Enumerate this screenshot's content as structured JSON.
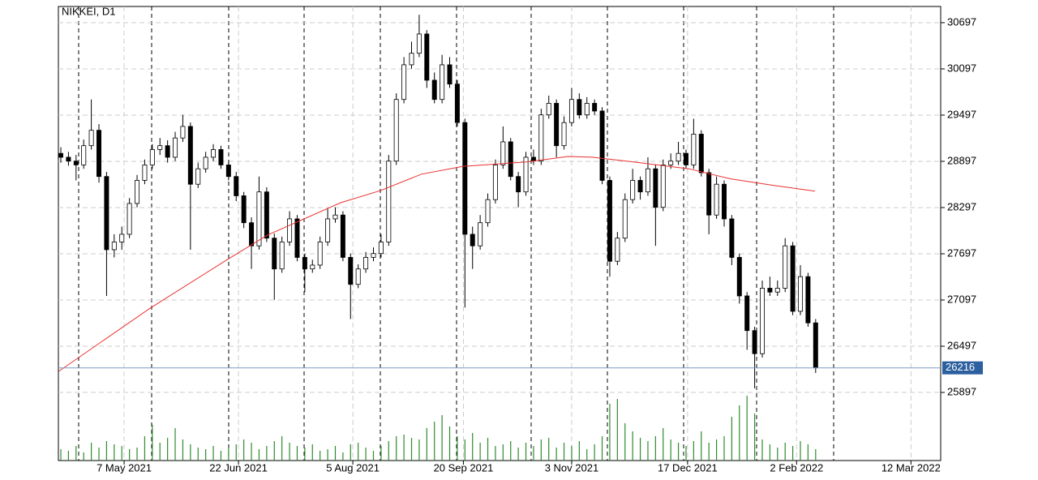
{
  "chart_data": {
    "type": "candlestick",
    "title": "NIKKEI, D1",
    "ylim": [
      25013,
      30907
    ],
    "yticks": [
      25897,
      26497,
      27097,
      27697,
      28297,
      28897,
      29497,
      30097,
      30697
    ],
    "xlim": [
      -0.32,
      115.4
    ],
    "xticks": [
      {
        "value": 8.3,
        "label": "7 May 2021"
      },
      {
        "value": 23.3,
        "label": "22 Jun 2021"
      },
      {
        "value": 38.3,
        "label": "5 Aug 2021"
      },
      {
        "value": 52.8,
        "label": "20 Sep 2021"
      },
      {
        "value": 67,
        "label": "3 Nov 2021"
      },
      {
        "value": 82.2,
        "label": "17 Dec 2021"
      },
      {
        "value": 96.5,
        "label": "2 Feb 2022"
      },
      {
        "value": 111.5,
        "label": "12 Mar 2022"
      }
    ],
    "grid": true,
    "up_color": "#ffffff",
    "down_color": "#000000",
    "ohlc": [
      [
        29000,
        29080,
        28880,
        28950
      ],
      [
        28950,
        29020,
        28840,
        28900
      ],
      [
        28900,
        28980,
        28650,
        28850
      ],
      [
        28850,
        29180,
        28800,
        29100
      ],
      [
        29100,
        29700,
        29050,
        29300
      ],
      [
        29300,
        29380,
        28620,
        28700
      ],
      [
        28700,
        28760,
        27150,
        27750
      ],
      [
        27750,
        27950,
        27650,
        27850
      ],
      [
        27850,
        28050,
        27750,
        27950
      ],
      [
        27950,
        28420,
        27900,
        28350
      ],
      [
        28350,
        28720,
        28300,
        28650
      ],
      [
        28650,
        28920,
        28600,
        28850
      ],
      [
        28850,
        29120,
        28800,
        29050
      ],
      [
        29050,
        29200,
        28980,
        29100
      ],
      [
        29100,
        29170,
        28880,
        28950
      ],
      [
        28950,
        29280,
        28900,
        29200
      ],
      [
        29200,
        29500,
        29150,
        29350
      ],
      [
        29350,
        29400,
        27750,
        28600
      ],
      [
        28600,
        28880,
        28550,
        28800
      ],
      [
        28800,
        29020,
        28750,
        28950
      ],
      [
        28950,
        29120,
        28900,
        29050
      ],
      [
        29050,
        29100,
        28800,
        28850
      ],
      [
        28850,
        28900,
        28650,
        28700
      ],
      [
        28700,
        28760,
        28380,
        28450
      ],
      [
        28450,
        28500,
        28030,
        28100
      ],
      [
        28100,
        28170,
        27500,
        27800
      ],
      [
        27800,
        28700,
        27750,
        28500
      ],
      [
        28500,
        28560,
        27850,
        27900
      ],
      [
        27900,
        27960,
        27100,
        27500
      ],
      [
        27500,
        27920,
        27450,
        27850
      ],
      [
        27850,
        28250,
        27800,
        28150
      ],
      [
        28150,
        28200,
        27600,
        27650
      ],
      [
        27650,
        27700,
        27200,
        27500
      ],
      [
        27500,
        27620,
        27450,
        27550
      ],
      [
        27550,
        27920,
        27500,
        27850
      ],
      [
        27850,
        28280,
        27800,
        28150
      ],
      [
        28150,
        28300,
        28100,
        28200
      ],
      [
        28200,
        28250,
        27600,
        27650
      ],
      [
        27650,
        27700,
        26850,
        27300
      ],
      [
        27300,
        27560,
        27250,
        27500
      ],
      [
        27500,
        27720,
        27450,
        27650
      ],
      [
        27650,
        27780,
        27600,
        27700
      ],
      [
        27700,
        27950,
        27650,
        27850
      ],
      [
        27850,
        28980,
        27800,
        28900
      ],
      [
        28900,
        29780,
        28850,
        29700
      ],
      [
        29700,
        30250,
        29650,
        30150
      ],
      [
        30150,
        30450,
        30100,
        30300
      ],
      [
        30300,
        30800,
        30250,
        30550
      ],
      [
        30550,
        30600,
        29850,
        29950
      ],
      [
        29950,
        30050,
        29650,
        29700
      ],
      [
        29700,
        30280,
        29650,
        30150
      ],
      [
        30150,
        30250,
        29850,
        29900
      ],
      [
        29900,
        29950,
        29350,
        29400
      ],
      [
        29400,
        29450,
        27000,
        27950
      ],
      [
        27950,
        28050,
        27500,
        27800
      ],
      [
        27800,
        28200,
        27750,
        28100
      ],
      [
        28100,
        28480,
        28050,
        28400
      ],
      [
        28400,
        28920,
        28350,
        28850
      ],
      [
        28850,
        29350,
        28800,
        29150
      ],
      [
        29150,
        29200,
        28650,
        28700
      ],
      [
        28700,
        28760,
        28300,
        28500
      ],
      [
        28500,
        29020,
        28450,
        28950
      ],
      [
        28950,
        29050,
        28850,
        28900
      ],
      [
        28900,
        29580,
        28850,
        29500
      ],
      [
        29500,
        29750,
        29450,
        29650
      ],
      [
        29650,
        29700,
        28950,
        29100
      ],
      [
        29100,
        29480,
        29050,
        29400
      ],
      [
        29400,
        29850,
        29350,
        29700
      ],
      [
        29700,
        29780,
        29450,
        29500
      ],
      [
        29500,
        29730,
        29450,
        29650
      ],
      [
        29650,
        29700,
        29500,
        29550
      ],
      [
        29550,
        29600,
        28600,
        28650
      ],
      [
        28650,
        28700,
        27400,
        27600
      ],
      [
        27600,
        27980,
        27550,
        27900
      ],
      [
        27900,
        28480,
        27850,
        28400
      ],
      [
        28400,
        28800,
        28350,
        28650
      ],
      [
        28650,
        28700,
        28400,
        28500
      ],
      [
        28500,
        28950,
        28450,
        28800
      ],
      [
        28800,
        28850,
        27800,
        28300
      ],
      [
        28300,
        28920,
        28250,
        28850
      ],
      [
        28850,
        29000,
        28800,
        28900
      ],
      [
        28900,
        29150,
        28850,
        29000
      ],
      [
        29000,
        29050,
        28800,
        28850
      ],
      [
        28850,
        29450,
        28800,
        29250
      ],
      [
        29250,
        29300,
        28700,
        28750
      ],
      [
        28750,
        28800,
        27950,
        28200
      ],
      [
        28200,
        28700,
        28150,
        28600
      ],
      [
        28600,
        28650,
        28050,
        28150
      ],
      [
        28150,
        28200,
        27550,
        27650
      ],
      [
        27650,
        27700,
        27050,
        27150
      ],
      [
        27150,
        27200,
        26450,
        26700
      ],
      [
        26700,
        26750,
        25950,
        26400
      ],
      [
        26400,
        27350,
        26350,
        27250
      ],
      [
        27250,
        27400,
        27150,
        27200
      ],
      [
        27200,
        27350,
        27150,
        27250
      ],
      [
        27250,
        27900,
        27200,
        27800
      ],
      [
        27800,
        27850,
        26900,
        26950
      ],
      [
        26950,
        27550,
        26900,
        27400
      ],
      [
        27400,
        27450,
        26750,
        26800
      ],
      [
        26800,
        26850,
        26150,
        26216
      ]
    ],
    "overlay": {
      "color": "#e8312f",
      "x": [
        -0.3,
        11.7,
        21.8,
        27.1,
        36.7,
        42,
        47.3,
        52.7,
        61.2,
        66.5,
        69.7,
        75,
        82.4,
        87.8,
        93.1,
        98.9
      ],
      "values": [
        26170,
        26990,
        27620,
        27940,
        28360,
        28520,
        28730,
        28830,
        28890,
        28960,
        28950,
        28890,
        28800,
        28670,
        28590,
        28510
      ]
    },
    "volume": {
      "color": "#2e8b2e",
      "vlim": [
        0,
        100
      ],
      "values": [
        14,
        12,
        18,
        10,
        22,
        16,
        24,
        20,
        18,
        14,
        16,
        30,
        44,
        22,
        28,
        40,
        26,
        20,
        16,
        14,
        18,
        12,
        16,
        20,
        26,
        22,
        14,
        18,
        24,
        30,
        22,
        18,
        16,
        20,
        12,
        14,
        18,
        10,
        20,
        22,
        16,
        12,
        18,
        24,
        30,
        32,
        28,
        26,
        40,
        48,
        56,
        42,
        30,
        26,
        34,
        22,
        28,
        18,
        20,
        24,
        16,
        22,
        18,
        26,
        28,
        16,
        22,
        18,
        24,
        14,
        20,
        30,
        70,
        76,
        46,
        36,
        28,
        24,
        30,
        40,
        26,
        22,
        18,
        24,
        36,
        22,
        26,
        30,
        54,
        68,
        80,
        58,
        26,
        20,
        16,
        22,
        18,
        24,
        20,
        14
      ]
    },
    "last_price": 26216,
    "last_price_color": "#2b5f9e"
  }
}
